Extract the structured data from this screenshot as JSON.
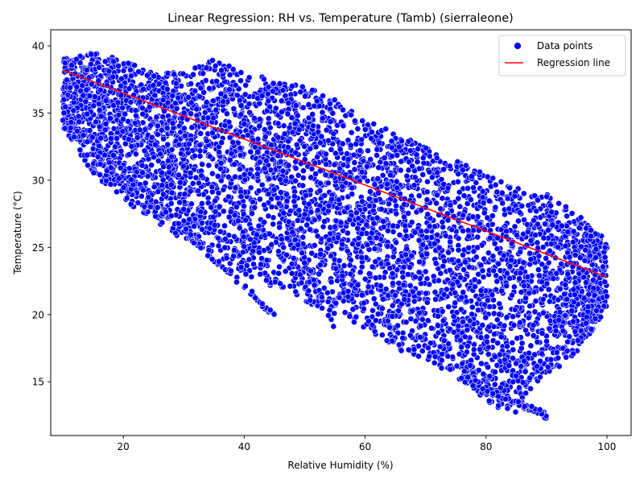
{
  "chart_data": {
    "type": "scatter",
    "title": "Linear Regression: RH vs. Temperature (Tamb) (sierraleone)",
    "xlabel": "Relative Humidity (%)",
    "ylabel": "Temperature (°C)",
    "xlim": [
      8,
      104
    ],
    "ylim": [
      11,
      41.2
    ],
    "xticks": [
      20,
      40,
      60,
      80,
      100
    ],
    "yticks": [
      15,
      20,
      25,
      30,
      35,
      40
    ],
    "grid": false,
    "legend": {
      "placement": "upper right",
      "entries": [
        {
          "label": "Data points",
          "kind": "marker"
        },
        {
          "label": "Regression line",
          "kind": "line"
        }
      ]
    },
    "series": [
      {
        "name": "Data points",
        "kind": "scatter",
        "color": "#0000ff",
        "edge_color": "#ffffff",
        "density_envelope": {
          "description": "dense cloud; at each RH the temperature spans [low, high]",
          "x": [
            10,
            15,
            20,
            25,
            30,
            35,
            40,
            45,
            50,
            55,
            60,
            65,
            70,
            75,
            80,
            85,
            90,
            95,
            100
          ],
          "low": [
            34.0,
            30.5,
            28.5,
            27.0,
            25.5,
            24.5,
            23.0,
            22.0,
            21.0,
            20.0,
            19.0,
            17.5,
            16.5,
            15.5,
            13.5,
            12.5,
            15.5,
            17.0,
            20.5
          ],
          "high": [
            39.0,
            39.5,
            39.0,
            38.0,
            38.0,
            39.0,
            38.0,
            37.5,
            37.0,
            36.0,
            34.5,
            33.5,
            32.5,
            31.5,
            30.5,
            29.5,
            29.0,
            27.5,
            25.5
          ]
        },
        "edge_streaks": [
          {
            "from": [
              20,
              30.5
            ],
            "to": [
              45,
              20.0
            ]
          },
          {
            "from": [
              35,
              39.2
            ],
            "to": [
              55,
              19.0
            ]
          },
          {
            "from": [
              75,
              15.5
            ],
            "to": [
              90,
              12.5
            ]
          }
        ]
      },
      {
        "name": "Regression line",
        "kind": "line",
        "color": "#ff0000",
        "x": [
          10,
          100
        ],
        "y": [
          38.2,
          22.8
        ]
      }
    ]
  }
}
